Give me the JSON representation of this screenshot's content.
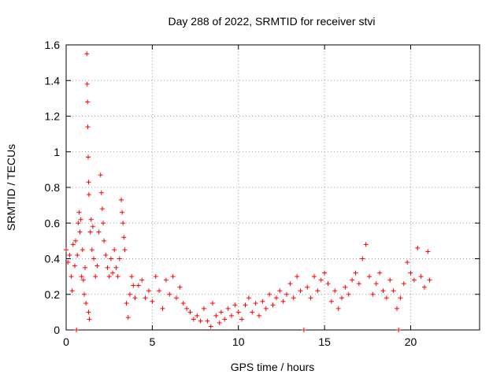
{
  "chart_data": {
    "type": "scatter",
    "title": "Day 288 of 2022, SRMTID for receiver stvi",
    "xlabel": "GPS time / hours",
    "ylabel": "SRMTID / TECUs",
    "xlim": [
      0,
      24
    ],
    "ylim": [
      0,
      1.6
    ],
    "xticks": [
      0,
      5,
      10,
      15,
      20
    ],
    "xtick_labels": [
      "0",
      "5",
      "10",
      "15",
      "20"
    ],
    "yticks": [
      0,
      0.2,
      0.4,
      0.6,
      0.8,
      1.0,
      1.2,
      1.4,
      1.6
    ],
    "ytick_labels": [
      "0",
      "0.2",
      "0.4",
      "0.6",
      "0.8",
      "1",
      "1.2",
      "1.4",
      "1.6"
    ],
    "grid": true,
    "marker": "plus",
    "color": "#ff0000",
    "series": [
      {
        "name": "SRMTID",
        "points": [
          [
            0.0,
            0.45
          ],
          [
            0.1,
            0.38
          ],
          [
            0.2,
            0.42
          ],
          [
            0.3,
            0.3
          ],
          [
            0.35,
            0.22
          ],
          [
            0.4,
            0.48
          ],
          [
            0.5,
            0.36
          ],
          [
            0.55,
            0.5
          ],
          [
            0.6,
            0.0
          ],
          [
            0.65,
            0.42
          ],
          [
            0.7,
            0.6
          ],
          [
            0.75,
            0.66
          ],
          [
            0.8,
            0.55
          ],
          [
            0.85,
            0.62
          ],
          [
            0.9,
            0.3
          ],
          [
            0.95,
            0.45
          ],
          [
            1.0,
            0.28
          ],
          [
            1.05,
            0.2
          ],
          [
            1.1,
            0.35
          ],
          [
            1.15,
            0.15
          ],
          [
            1.2,
            1.55
          ],
          [
            1.22,
            1.38
          ],
          [
            1.24,
            1.28
          ],
          [
            1.26,
            1.14
          ],
          [
            1.28,
            0.97
          ],
          [
            1.3,
            0.83
          ],
          [
            1.32,
            0.76
          ],
          [
            1.3,
            0.1
          ],
          [
            1.35,
            0.06
          ],
          [
            1.4,
            0.55
          ],
          [
            1.45,
            0.62
          ],
          [
            1.5,
            0.45
          ],
          [
            1.55,
            0.58
          ],
          [
            1.6,
            0.4
          ],
          [
            1.7,
            0.3
          ],
          [
            1.8,
            0.36
          ],
          [
            1.9,
            0.55
          ],
          [
            2.0,
            0.87
          ],
          [
            2.05,
            0.77
          ],
          [
            2.1,
            0.68
          ],
          [
            2.15,
            0.6
          ],
          [
            2.2,
            0.5
          ],
          [
            2.3,
            0.42
          ],
          [
            2.4,
            0.35
          ],
          [
            2.5,
            0.3
          ],
          [
            2.6,
            0.4
          ],
          [
            2.7,
            0.32
          ],
          [
            2.8,
            0.45
          ],
          [
            2.9,
            0.35
          ],
          [
            3.0,
            0.3
          ],
          [
            3.1,
            0.4
          ],
          [
            3.2,
            0.73
          ],
          [
            3.25,
            0.66
          ],
          [
            3.3,
            0.6
          ],
          [
            3.35,
            0.52
          ],
          [
            3.4,
            0.45
          ],
          [
            3.5,
            0.15
          ],
          [
            3.6,
            0.07
          ],
          [
            3.7,
            0.2
          ],
          [
            3.8,
            0.3
          ],
          [
            3.9,
            0.25
          ],
          [
            4.0,
            0.18
          ],
          [
            4.2,
            0.25
          ],
          [
            4.4,
            0.28
          ],
          [
            4.6,
            0.18
          ],
          [
            4.8,
            0.22
          ],
          [
            5.0,
            0.16
          ],
          [
            5.2,
            0.3
          ],
          [
            5.4,
            0.22
          ],
          [
            5.6,
            0.12
          ],
          [
            5.8,
            0.28
          ],
          [
            6.0,
            0.2
          ],
          [
            6.2,
            0.3
          ],
          [
            6.4,
            0.18
          ],
          [
            6.6,
            0.24
          ],
          [
            6.8,
            0.15
          ],
          [
            7.0,
            0.12
          ],
          [
            7.2,
            0.1
          ],
          [
            7.4,
            0.06
          ],
          [
            7.6,
            0.08
          ],
          [
            7.8,
            0.05
          ],
          [
            8.0,
            0.12
          ],
          [
            8.2,
            0.05
          ],
          [
            8.4,
            0.02
          ],
          [
            8.5,
            0.15
          ],
          [
            8.7,
            0.08
          ],
          [
            8.9,
            0.04
          ],
          [
            9.0,
            0.1
          ],
          [
            9.2,
            0.06
          ],
          [
            9.4,
            0.12
          ],
          [
            9.6,
            0.08
          ],
          [
            9.8,
            0.14
          ],
          [
            10.0,
            0.1
          ],
          [
            10.2,
            0.06
          ],
          [
            10.4,
            0.14
          ],
          [
            10.6,
            0.18
          ],
          [
            10.8,
            0.1
          ],
          [
            11.0,
            0.15
          ],
          [
            11.2,
            0.08
          ],
          [
            11.4,
            0.16
          ],
          [
            11.6,
            0.12
          ],
          [
            11.8,
            0.2
          ],
          [
            12.0,
            0.14
          ],
          [
            12.2,
            0.18
          ],
          [
            12.4,
            0.22
          ],
          [
            12.6,
            0.16
          ],
          [
            12.8,
            0.2
          ],
          [
            13.0,
            0.26
          ],
          [
            13.2,
            0.18
          ],
          [
            13.4,
            0.3
          ],
          [
            13.6,
            0.22
          ],
          [
            13.8,
            0.0
          ],
          [
            14.0,
            0.24
          ],
          [
            14.2,
            0.18
          ],
          [
            14.4,
            0.3
          ],
          [
            14.6,
            0.22
          ],
          [
            14.8,
            0.28
          ],
          [
            15.0,
            0.32
          ],
          [
            15.2,
            0.26
          ],
          [
            15.4,
            0.16
          ],
          [
            15.6,
            0.22
          ],
          [
            15.8,
            0.12
          ],
          [
            16.0,
            0.18
          ],
          [
            16.2,
            0.24
          ],
          [
            16.4,
            0.2
          ],
          [
            16.6,
            0.28
          ],
          [
            16.8,
            0.32
          ],
          [
            17.0,
            0.26
          ],
          [
            17.2,
            0.4
          ],
          [
            17.4,
            0.48
          ],
          [
            17.6,
            0.3
          ],
          [
            17.8,
            0.2
          ],
          [
            18.0,
            0.26
          ],
          [
            18.2,
            0.32
          ],
          [
            18.4,
            0.22
          ],
          [
            18.6,
            0.18
          ],
          [
            18.8,
            0.28
          ],
          [
            19.0,
            0.22
          ],
          [
            19.2,
            0.12
          ],
          [
            19.3,
            0.0
          ],
          [
            19.4,
            0.18
          ],
          [
            19.6,
            0.26
          ],
          [
            19.8,
            0.38
          ],
          [
            20.0,
            0.32
          ],
          [
            20.2,
            0.28
          ],
          [
            20.4,
            0.46
          ],
          [
            20.6,
            0.3
          ],
          [
            20.8,
            0.24
          ],
          [
            21.0,
            0.44
          ],
          [
            21.1,
            0.28
          ]
        ]
      }
    ]
  }
}
